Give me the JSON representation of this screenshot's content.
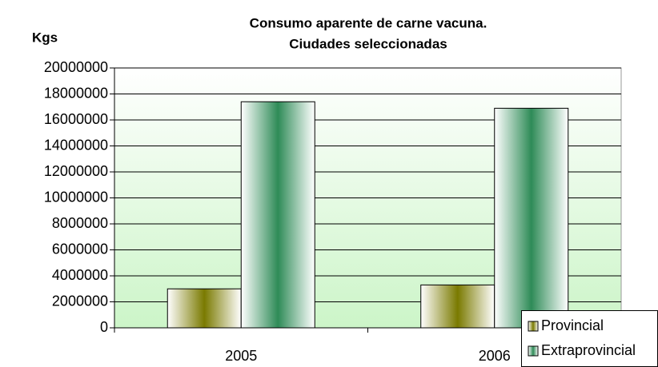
{
  "chart_data": {
    "type": "bar",
    "title": [
      "Consumo aparente de carne vacuna.",
      "Ciudades seleccionadas"
    ],
    "y_label": "Kgs",
    "categories": [
      "2005",
      "2006"
    ],
    "series": [
      {
        "name": "Provincial",
        "color": "#7a7a00",
        "values": [
          3000000,
          3300000
        ]
      },
      {
        "name": "Extraprovincial",
        "color": "#2e8b57",
        "values": [
          17400000,
          16900000
        ]
      }
    ],
    "ylim": [
      0,
      20000000
    ],
    "yticks": [
      0,
      2000000,
      4000000,
      6000000,
      8000000,
      10000000,
      12000000,
      14000000,
      16000000,
      18000000,
      20000000
    ],
    "grid": true,
    "legend": "bottom-right"
  }
}
